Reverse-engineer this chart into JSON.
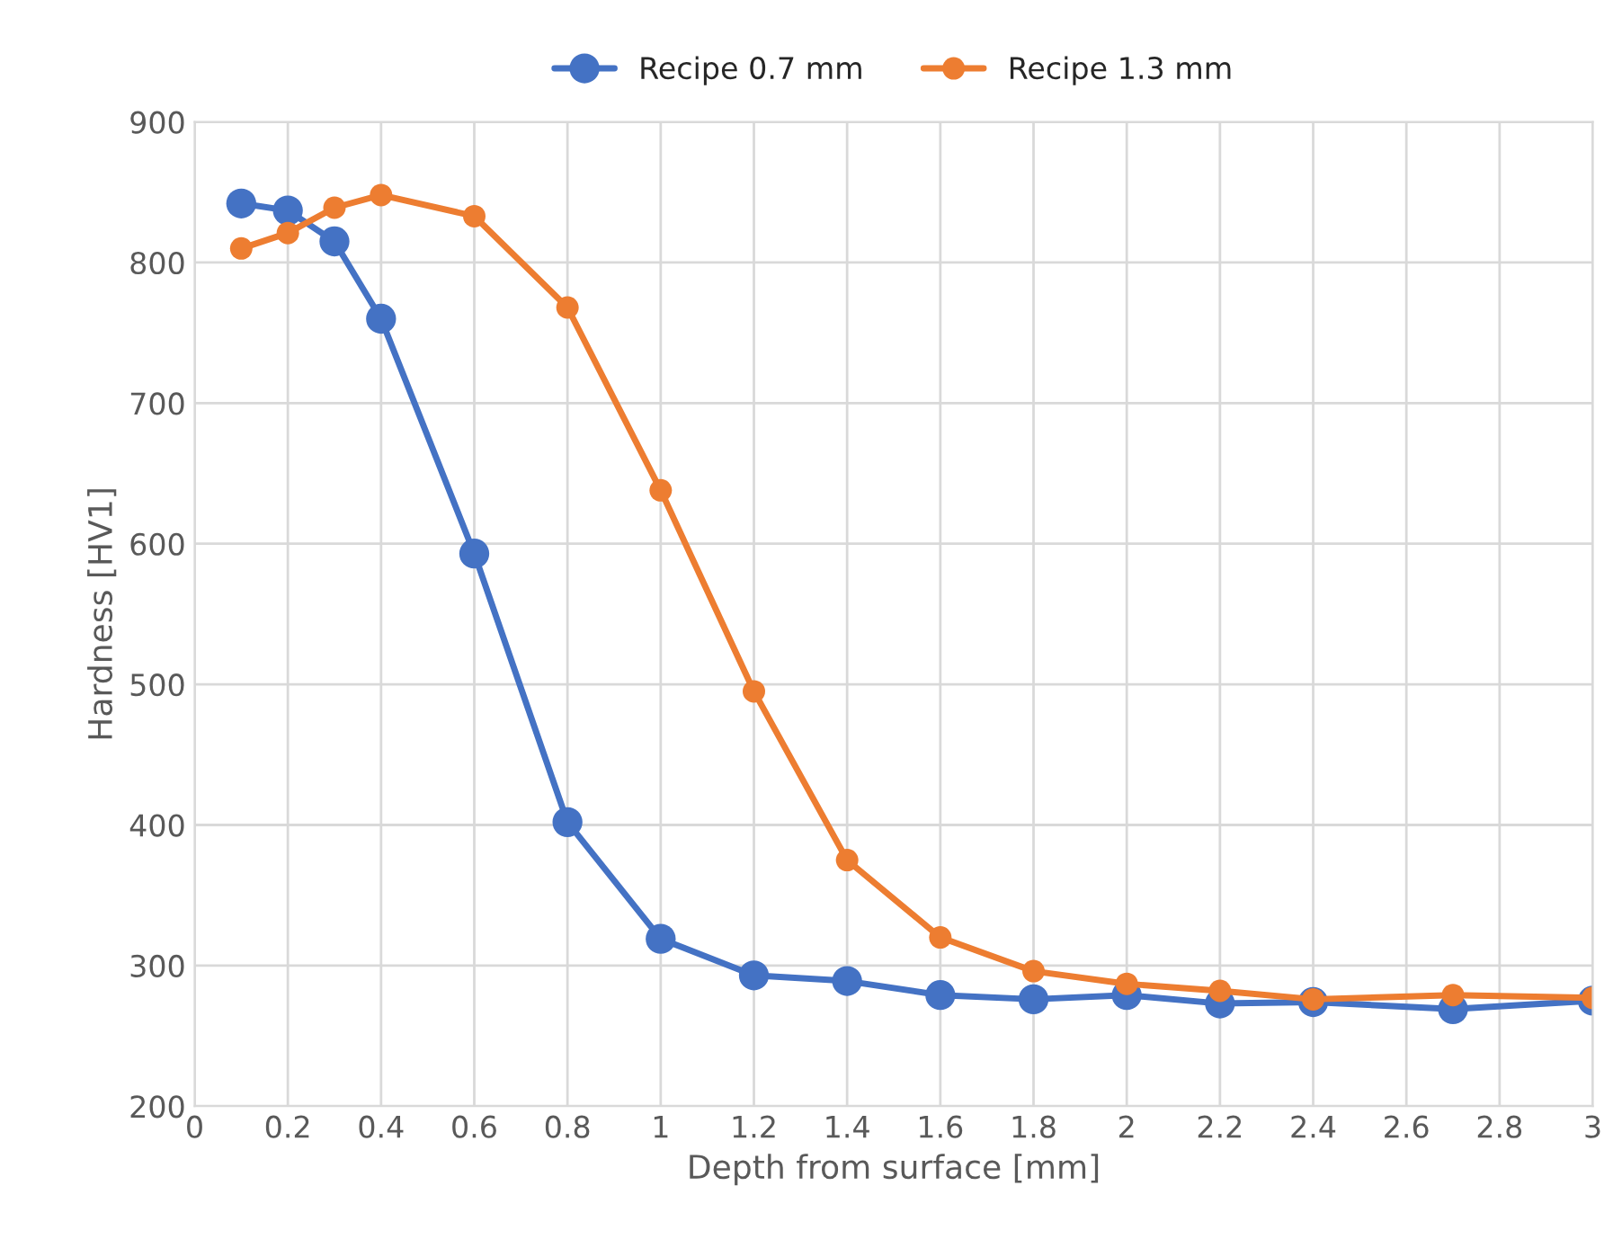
{
  "chart_data": {
    "type": "line",
    "xlabel": "Depth from surface [mm]",
    "ylabel": "Hardness [HV1]",
    "x": [
      0.1,
      0.2,
      0.3,
      0.4,
      0.6,
      0.8,
      1.0,
      1.2,
      1.4,
      1.6,
      1.8,
      2.0,
      2.2,
      2.4,
      2.7,
      3.0
    ],
    "series": [
      {
        "name": "Recipe 0.7 mm",
        "color": "#4472c4",
        "values": [
          842,
          837,
          815,
          760,
          593,
          402,
          319,
          293,
          289,
          279,
          276,
          279,
          273,
          274,
          269,
          275
        ]
      },
      {
        "name": "Recipe 1.3 mm",
        "color": "#ed7d31",
        "values": [
          810,
          821,
          839,
          848,
          833,
          768,
          638,
          495,
          375,
          320,
          296,
          287,
          282,
          276,
          279,
          277
        ]
      }
    ],
    "xlim": [
      0,
      3
    ],
    "xticks": [
      0,
      0.2,
      0.4,
      0.6,
      0.8,
      1,
      1.2,
      1.4,
      1.6,
      1.8,
      2,
      2.2,
      2.4,
      2.6,
      2.8,
      3
    ],
    "ylim": [
      200,
      900
    ],
    "yticks": [
      200,
      300,
      400,
      500,
      600,
      700,
      800,
      900
    ],
    "grid": true,
    "legend": "top",
    "marker": "circle",
    "line_style": "solid"
  }
}
